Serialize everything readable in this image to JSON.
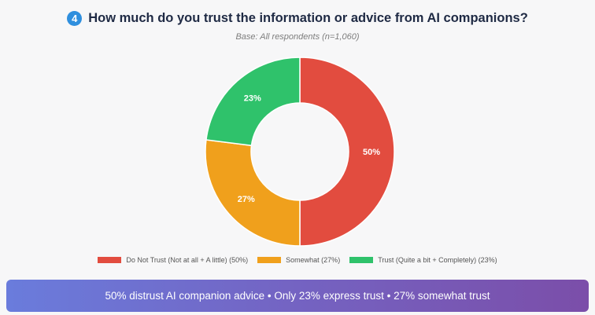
{
  "header": {
    "number": "4",
    "title": "How much do you trust the information or advice from AI companions?",
    "subtitle": "Base: All respondents (n=1,060)"
  },
  "chart_data": {
    "type": "pie",
    "donut": true,
    "categories": [
      "Do Not Trust (Not at all + A little) (50%)",
      "Somewhat (27%)",
      "Trust (Quite a bit + Completely) (23%)"
    ],
    "values": [
      50,
      27,
      23
    ],
    "data_labels": [
      "50%",
      "27%",
      "23%"
    ],
    "colors": [
      "#e24c3f",
      "#f0a01c",
      "#2fc26b"
    ],
    "legend_position": "bottom"
  },
  "banner": {
    "text": "50% distrust AI companion advice • Only 23% express trust • 27% somewhat trust"
  }
}
